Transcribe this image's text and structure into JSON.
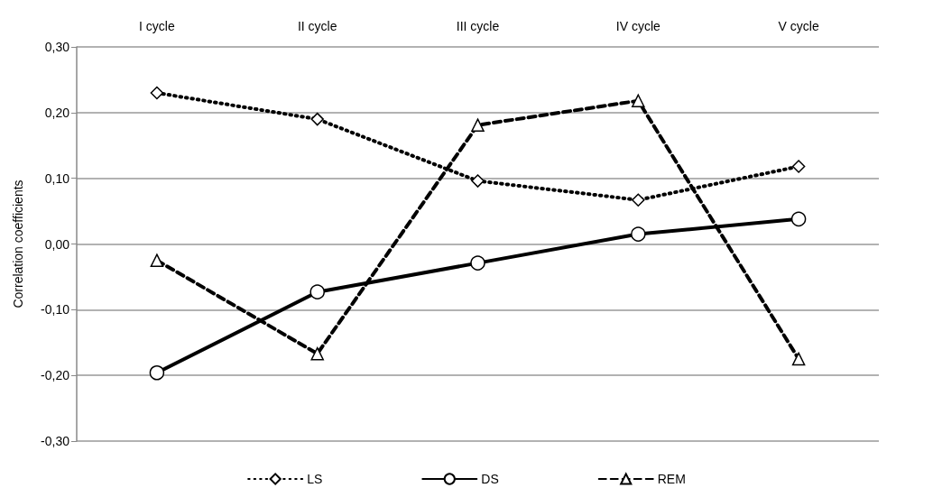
{
  "chart_data": {
    "type": "line",
    "ylabel": "Correlation coefficients",
    "categories": [
      "I cycle",
      "II cycle",
      "III cycle",
      "IV cycle",
      "V cycle"
    ],
    "series": [
      {
        "name": "LS",
        "color": "#000000",
        "marker": "diamond",
        "line_style": "dotted",
        "values": [
          0.23,
          0.19,
          0.096,
          0.067,
          0.118
        ]
      },
      {
        "name": "DS",
        "color": "#000000",
        "marker": "circle",
        "line_style": "solid",
        "values": [
          -0.196,
          -0.073,
          -0.029,
          0.015,
          0.038
        ]
      },
      {
        "name": "REM",
        "color": "#000000",
        "marker": "triangle",
        "line_style": "dashed",
        "values": [
          -0.025,
          -0.167,
          0.181,
          0.218,
          -0.175
        ]
      }
    ],
    "ylim": [
      -0.3,
      0.3
    ],
    "yticks": [
      {
        "value": -0.3,
        "label": "-0,30"
      },
      {
        "value": -0.2,
        "label": "-0,20"
      },
      {
        "value": -0.1,
        "label": "-0,10"
      },
      {
        "value": 0,
        "label": "0,00"
      },
      {
        "value": 0.1,
        "label": "0,10"
      },
      {
        "value": 0.2,
        "label": "0,20"
      },
      {
        "value": 0.3,
        "label": "0,30"
      }
    ],
    "grid": "y",
    "legend": "bottom"
  }
}
